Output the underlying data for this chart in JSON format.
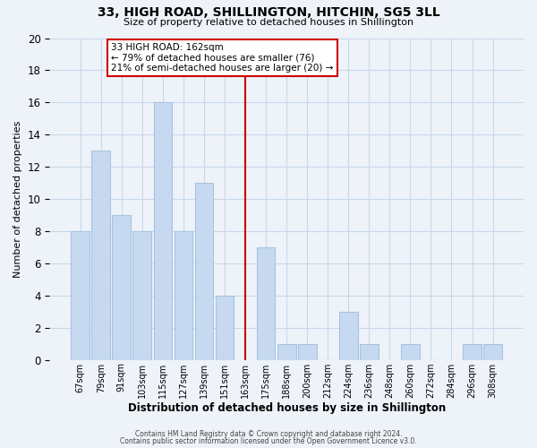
{
  "title": "33, HIGH ROAD, SHILLINGTON, HITCHIN, SG5 3LL",
  "subtitle": "Size of property relative to detached houses in Shillington",
  "xlabel": "Distribution of detached houses by size in Shillington",
  "ylabel": "Number of detached properties",
  "bar_labels": [
    "67sqm",
    "79sqm",
    "91sqm",
    "103sqm",
    "115sqm",
    "127sqm",
    "139sqm",
    "151sqm",
    "163sqm",
    "175sqm",
    "188sqm",
    "200sqm",
    "212sqm",
    "224sqm",
    "236sqm",
    "248sqm",
    "260sqm",
    "272sqm",
    "284sqm",
    "296sqm",
    "308sqm"
  ],
  "bar_values": [
    8,
    13,
    9,
    8,
    16,
    8,
    11,
    4,
    0,
    7,
    1,
    1,
    0,
    3,
    1,
    0,
    1,
    0,
    0,
    1,
    1
  ],
  "bar_color": "#c6d9f1",
  "bar_edge_color": "#a8c4e0",
  "grid_color": "#c8d8ea",
  "vline_x": 8,
  "vline_color": "#cc0000",
  "annotation_title": "33 HIGH ROAD: 162sqm",
  "annotation_line1": "← 79% of detached houses are smaller (76)",
  "annotation_line2": "21% of semi-detached houses are larger (20) →",
  "annotation_box_edge": "#cc0000",
  "ylim": [
    0,
    20
  ],
  "yticks": [
    0,
    2,
    4,
    6,
    8,
    10,
    12,
    14,
    16,
    18,
    20
  ],
  "footnote1": "Contains HM Land Registry data © Crown copyright and database right 2024.",
  "footnote2": "Contains public sector information licensed under the Open Government Licence v3.0.",
  "bg_color": "#eef3f9"
}
